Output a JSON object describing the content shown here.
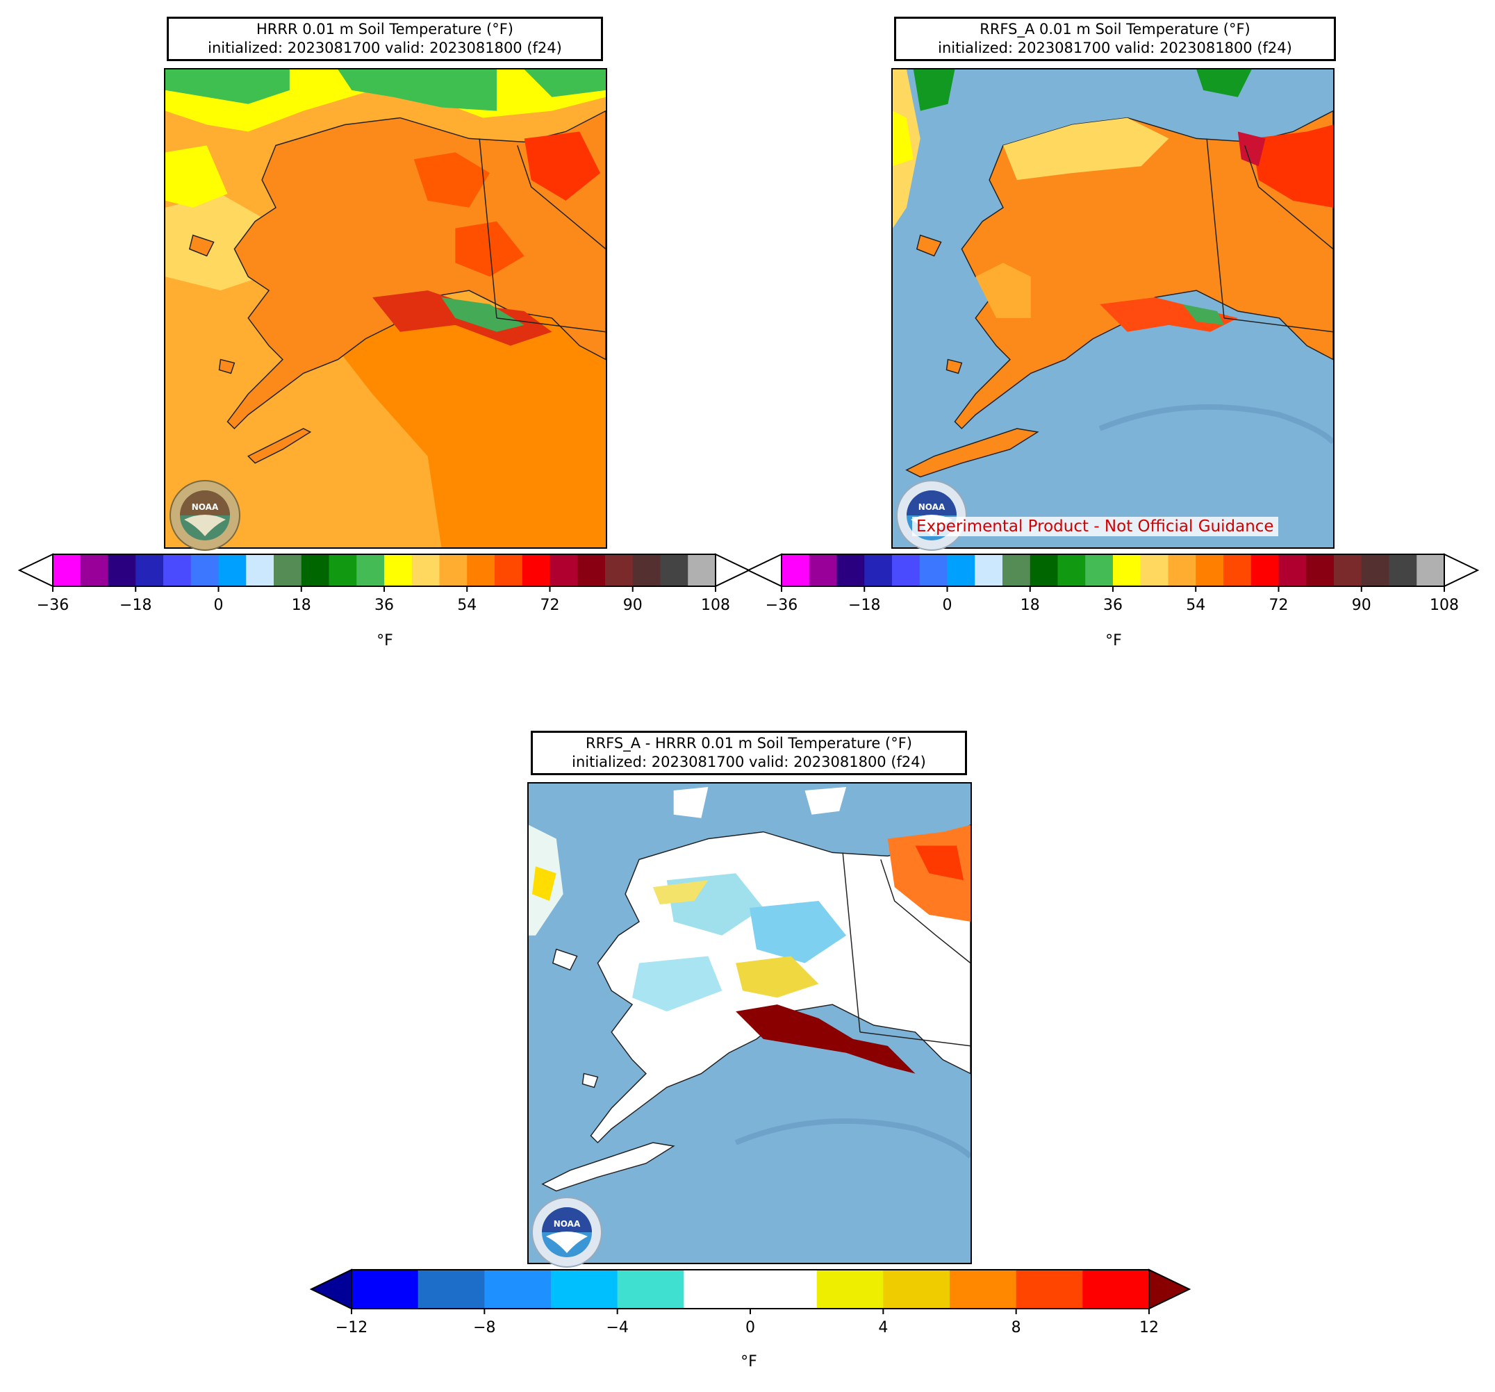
{
  "panels": [
    {
      "id": "hrrr",
      "title_line1": "HRRR 0.01 m Soil Temperature (°F)",
      "title_line2": "initialized: 2023081700 valid: 2023081800 (f24)",
      "logo_text": "NOAA",
      "ocean_color": "#fd8200",
      "land_color": "#fb8a1a"
    },
    {
      "id": "rrfs",
      "title_line1": "RRFS_A 0.01 m Soil Temperature (°F)",
      "title_line2": "initialized: 2023081700 valid: 2023081800 (f24)",
      "logo_text": "NOAA",
      "disclaimer": "Experimental Product - Not Official Guidance",
      "ocean_color": "#7eb3d8",
      "land_color": "#fb8a1a"
    },
    {
      "id": "diff",
      "title_line1": "RRFS_A - HRRR 0.01 m Soil Temperature (°F)",
      "title_line2": "initialized: 2023081700 valid: 2023081800 (f24)",
      "logo_text": "NOAA",
      "ocean_color": "#7eb3d8",
      "land_color": "#ffffff"
    }
  ],
  "temp_colorbar": {
    "unit": "°F",
    "ticks": [
      "−36",
      "−18",
      "0",
      "18",
      "36",
      "54",
      "72",
      "90",
      "108"
    ],
    "colors": [
      "#ff00ff",
      "#990099",
      "#2a0080",
      "#2424b8",
      "#4a4aff",
      "#3b78ff",
      "#00a0ff",
      "#cce8ff",
      "#558b55",
      "#006600",
      "#119911",
      "#44bb55",
      "#ffff00",
      "#ffd860",
      "#ffad30",
      "#ff8000",
      "#ff4800",
      "#ff0000",
      "#b00030",
      "#880011",
      "#7a2a2a",
      "#553030",
      "#444444",
      "#b0b0b0"
    ],
    "over_color": "#ffffff",
    "under_color": "#ffffff"
  },
  "diff_colorbar": {
    "unit": "°F",
    "ticks": [
      "−12",
      "−8",
      "−4",
      "0",
      "4",
      "8",
      "12"
    ],
    "colors": [
      "#0000ff",
      "#1c6ec8",
      "#1e90ff",
      "#00bfff",
      "#40e0d0",
      "#ffffff",
      "#ffffff",
      "#eeee00",
      "#eecc00",
      "#ff8800",
      "#ff4500",
      "#ff0000"
    ],
    "under_color": "#000099",
    "over_color": "#880000"
  }
}
